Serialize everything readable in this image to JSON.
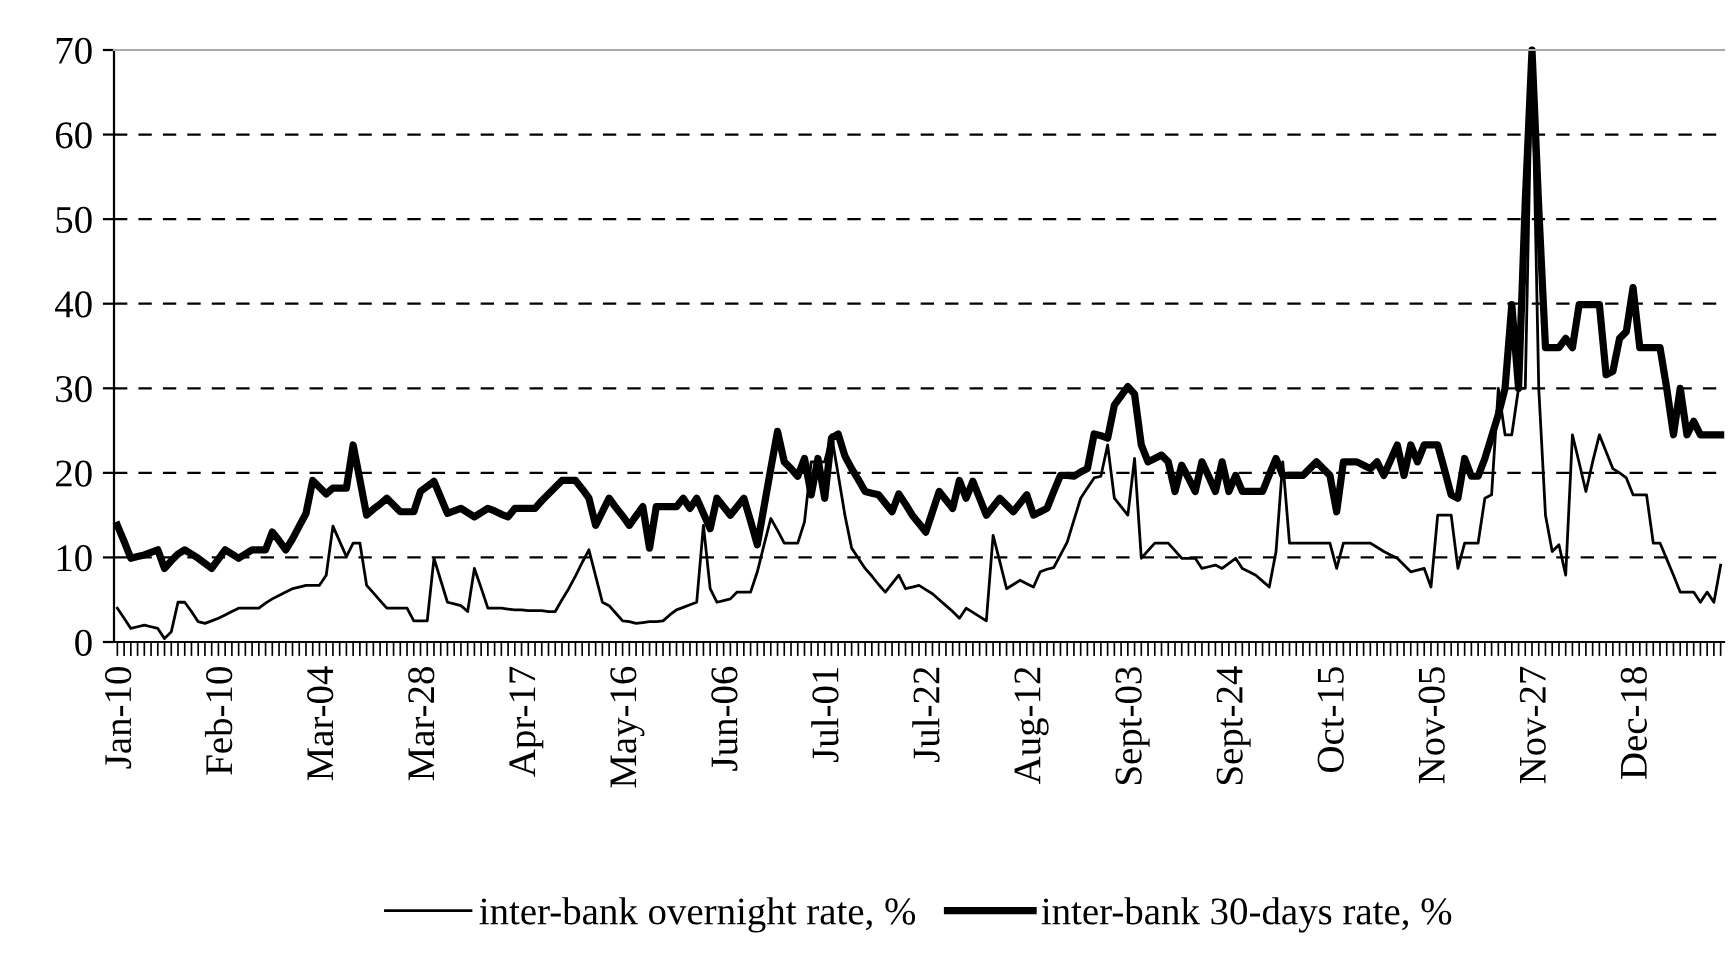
{
  "chart_data": {
    "type": "line",
    "categories": [
      "Jan-10",
      null,
      null,
      null,
      null,
      null,
      null,
      null,
      null,
      null,
      null,
      null,
      null,
      null,
      null,
      "Feb-10",
      null,
      null,
      null,
      null,
      null,
      null,
      null,
      null,
      null,
      null,
      null,
      null,
      null,
      null,
      "Mar-04",
      null,
      null,
      null,
      null,
      null,
      null,
      null,
      null,
      null,
      null,
      null,
      null,
      null,
      null,
      "Mar-28",
      null,
      null,
      null,
      null,
      null,
      null,
      null,
      null,
      null,
      null,
      null,
      null,
      null,
      null,
      "Apr-17",
      null,
      null,
      null,
      null,
      null,
      null,
      null,
      null,
      null,
      null,
      null,
      null,
      null,
      null,
      "May-16",
      null,
      null,
      null,
      null,
      null,
      null,
      null,
      null,
      null,
      null,
      null,
      null,
      null,
      null,
      "Jun-06",
      null,
      null,
      null,
      null,
      null,
      null,
      null,
      null,
      null,
      null,
      null,
      null,
      null,
      null,
      "Jul-01",
      null,
      null,
      null,
      null,
      null,
      null,
      null,
      null,
      null,
      null,
      null,
      null,
      null,
      null,
      "Jul-22",
      null,
      null,
      null,
      null,
      null,
      null,
      null,
      null,
      null,
      null,
      null,
      null,
      null,
      null,
      "Aug-12",
      null,
      null,
      null,
      null,
      null,
      null,
      null,
      null,
      null,
      null,
      null,
      null,
      null,
      null,
      "Sept-03",
      null,
      null,
      null,
      null,
      null,
      null,
      null,
      null,
      null,
      null,
      null,
      null,
      null,
      null,
      "Sept-24",
      null,
      null,
      null,
      null,
      null,
      null,
      null,
      null,
      null,
      null,
      null,
      null,
      null,
      null,
      "Oct-15",
      null,
      null,
      null,
      null,
      null,
      null,
      null,
      null,
      null,
      null,
      null,
      null,
      null,
      null,
      "Nov-05",
      null,
      null,
      null,
      null,
      null,
      null,
      null,
      null,
      null,
      null,
      null,
      null,
      null,
      null,
      "Nov-27",
      null,
      null,
      null,
      null,
      null,
      null,
      null,
      null,
      null,
      null,
      null,
      null,
      null,
      null,
      "Dec-18",
      null,
      null,
      null,
      null,
      null,
      null,
      null,
      null,
      null,
      null,
      null,
      null,
      null
    ],
    "ylim": [
      0,
      70
    ],
    "yticks": [
      0,
      10,
      20,
      30,
      40,
      50,
      60,
      70
    ],
    "grid": "y",
    "legend": "bottom",
    "marker": "none",
    "line_style": "solid",
    "series": [
      {
        "name": "inter-bank overnight rate, %",
        "color": "#000000",
        "values": [
          4.0,
          2.8,
          1.6,
          1.8,
          2.0,
          1.8,
          1.6,
          0.4,
          1.2,
          4.7,
          4.7,
          3.6,
          2.4,
          2.2,
          2.5,
          2.8,
          3.2,
          3.6,
          4.0,
          4.0,
          4.0,
          4.0,
          4.6,
          5.1,
          5.5,
          5.9,
          6.3,
          6.5,
          6.7,
          6.7,
          6.7,
          7.9,
          13.7,
          11.9,
          10.1,
          11.7,
          11.7,
          6.7,
          5.8,
          4.9,
          4.0,
          4.0,
          4.0,
          4.0,
          2.5,
          2.5,
          2.5,
          9.9,
          7.3,
          4.7,
          4.5,
          4.3,
          3.6,
          8.7,
          6.4,
          4.0,
          4.0,
          4.0,
          3.9,
          3.8,
          3.8,
          3.7,
          3.7,
          3.7,
          3.6,
          3.6,
          5.0,
          6.3,
          7.8,
          9.4,
          10.9,
          7.8,
          4.7,
          4.3,
          3.4,
          2.5,
          2.4,
          2.2,
          2.3,
          2.4,
          2.4,
          2.5,
          3.2,
          3.8,
          4.1,
          4.4,
          4.7,
          13.8,
          6.3,
          4.7,
          4.9,
          5.1,
          5.9,
          5.9,
          5.9,
          8.3,
          11.5,
          14.6,
          13.2,
          11.7,
          11.7,
          11.7,
          14.2,
          21.3,
          21.3,
          21.3,
          24.5,
          19.8,
          15.0,
          11.1,
          9.9,
          8.7,
          7.8,
          6.8,
          5.9,
          6.9,
          7.9,
          6.3,
          6.5,
          6.7,
          6.2,
          5.7,
          5.0,
          4.3,
          3.6,
          2.8,
          4.0,
          3.5,
          3.0,
          2.5,
          12.6,
          9.5,
          6.3,
          6.8,
          7.3,
          6.9,
          6.5,
          8.3,
          8.6,
          8.8,
          10.3,
          11.8,
          14.4,
          17.0,
          18.2,
          19.4,
          19.6,
          23.3,
          17.0,
          16.0,
          15.0,
          21.7,
          9.9,
          10.8,
          11.7,
          11.7,
          11.7,
          10.8,
          9.9,
          9.9,
          9.9,
          8.7,
          8.9,
          9.1,
          8.7,
          9.3,
          9.9,
          8.7,
          8.3,
          7.9,
          7.2,
          6.5,
          10.7,
          21.3,
          11.7,
          11.7,
          11.7,
          11.7,
          11.7,
          11.7,
          11.7,
          8.7,
          11.7,
          11.7,
          11.7,
          11.7,
          11.7,
          11.2,
          10.7,
          10.3,
          9.9,
          9.1,
          8.3,
          8.5,
          8.7,
          6.5,
          15.0,
          15.0,
          15.0,
          8.7,
          11.7,
          11.7,
          11.7,
          17.0,
          17.4,
          30.0,
          24.5,
          24.5,
          30.0,
          30.0,
          70,
          30.0,
          15.0,
          10.7,
          11.5,
          7.9,
          24.5,
          21.2,
          17.8,
          21.3,
          24.5,
          22.5,
          20.5,
          20.0,
          19.4,
          17.4,
          17.4,
          17.4,
          11.7,
          11.7,
          9.8,
          7.9,
          5.9,
          5.9,
          5.9,
          4.7,
          5.9,
          4.7,
          9.1
        ]
      },
      {
        "name": "inter-bank 30-days rate, %",
        "color": "#000000",
        "values": [
          13.8,
          11.9,
          9.9,
          10.1,
          10.3,
          10.6,
          10.9,
          8.7,
          9.6,
          10.4,
          10.9,
          10.4,
          9.9,
          9.3,
          8.7,
          9.8,
          10.9,
          10.4,
          9.9,
          10.4,
          10.9,
          10.9,
          10.9,
          13.0,
          12.0,
          10.9,
          12.2,
          13.7,
          15.2,
          19.1,
          18.3,
          17.5,
          18.2,
          18.2,
          18.2,
          23.3,
          19.2,
          15.0,
          15.7,
          16.3,
          17.0,
          16.2,
          15.4,
          15.4,
          15.4,
          17.8,
          18.4,
          19.0,
          17.1,
          15.2,
          15.5,
          15.8,
          15.3,
          14.8,
          15.3,
          15.8,
          15.5,
          15.1,
          14.8,
          15.8,
          15.8,
          15.8,
          15.8,
          16.7,
          17.5,
          18.3,
          19.1,
          19.1,
          19.1,
          18.1,
          17.0,
          13.8,
          15.4,
          17.0,
          15.9,
          14.9,
          13.8,
          14.9,
          16.0,
          11.1,
          16.0,
          16.0,
          16.0,
          16.0,
          17.0,
          15.8,
          17.0,
          15.2,
          13.4,
          17.0,
          16.0,
          15.0,
          16.0,
          17.0,
          14.3,
          11.5,
          16.0,
          20.5,
          24.9,
          21.3,
          20.5,
          19.6,
          21.7,
          17.4,
          21.7,
          17.0,
          24.1,
          24.6,
          22.0,
          20.5,
          19.2,
          17.8,
          17.6,
          17.4,
          16.4,
          15.4,
          17.5,
          16.3,
          15.0,
          14.0,
          13.0,
          15.4,
          17.8,
          16.8,
          15.8,
          19.1,
          17.0,
          19.0,
          17.0,
          15.0,
          16.0,
          17.0,
          16.2,
          15.4,
          16.4,
          17.4,
          15.0,
          15.4,
          15.8,
          17.8,
          19.7,
          19.7,
          19.6,
          20.1,
          20.5,
          24.6,
          24.4,
          24.1,
          28.0,
          29.1,
          30.2,
          29.3,
          23.3,
          21.3,
          21.7,
          22.1,
          21.3,
          17.8,
          20.9,
          19.4,
          17.8,
          21.3,
          19.6,
          17.8,
          21.3,
          17.8,
          19.7,
          17.8,
          17.8,
          17.8,
          17.8,
          19.8,
          21.7,
          19.7,
          19.7,
          19.7,
          19.7,
          20.5,
          21.3,
          20.5,
          19.7,
          15.4,
          21.3,
          21.3,
          21.3,
          20.9,
          20.5,
          21.3,
          19.7,
          21.5,
          23.3,
          19.7,
          23.3,
          21.3,
          23.3,
          23.3,
          23.3,
          20.4,
          17.4,
          17.0,
          21.7,
          19.6,
          19.6,
          21.7,
          24.3,
          26.9,
          30.0,
          39.9,
          30.0,
          52.1,
          70,
          51.3,
          34.8,
          34.8,
          34.8,
          35.9,
          34.8,
          39.9,
          39.9,
          39.9,
          39.9,
          31.6,
          32.0,
          35.9,
          36.7,
          41.9,
          34.8,
          34.8,
          34.8,
          34.8,
          30.0,
          24.5,
          30.0,
          24.5,
          26.1,
          24.5,
          24.5,
          24.5,
          24.5
        ]
      }
    ]
  }
}
